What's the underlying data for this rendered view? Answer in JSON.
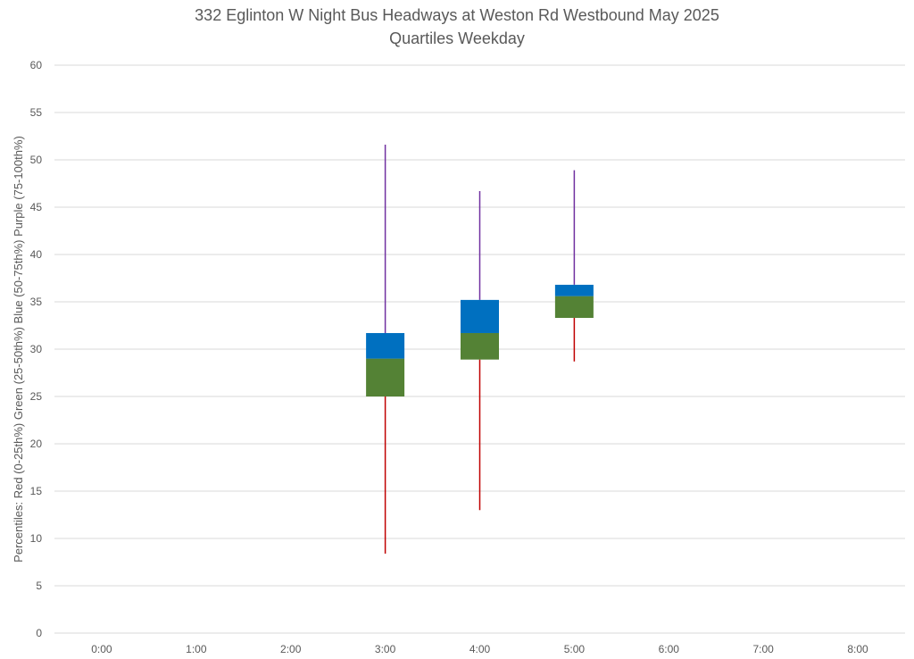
{
  "chart_data": {
    "type": "boxplot",
    "title": "332 Eglinton W Night Bus Headways at Weston Rd Westbound May 2025",
    "subtitle": "Quartiles Weekday",
    "ylabel": "Percentiles:  Red (0-25th%)  Green (25-50th%)  Blue (50-75th%)  Purple (75-100th%)",
    "xlabel": "",
    "categories": [
      "0:00",
      "1:00",
      "2:00",
      "3:00",
      "4:00",
      "5:00",
      "6:00",
      "7:00",
      "8:00"
    ],
    "yticks": [
      "0",
      "5",
      "10",
      "15",
      "20",
      "25",
      "30",
      "35",
      "40",
      "45",
      "50",
      "55",
      "60"
    ],
    "ylim": [
      0,
      60
    ],
    "grid": true,
    "colors": {
      "min_q1": "#c00000",
      "q1_median": "#548235",
      "median_q3": "#0070c0",
      "q3_max": "#7030a0"
    },
    "series": [
      {
        "category": "3:00",
        "min": 8.4,
        "q1": 25.0,
        "median": 29.0,
        "q3": 31.7,
        "max": 51.6
      },
      {
        "category": "4:00",
        "min": 13.0,
        "q1": 28.9,
        "median": 31.7,
        "q3": 35.2,
        "max": 46.7
      },
      {
        "category": "5:00",
        "min": 28.7,
        "q1": 33.3,
        "median": 35.6,
        "q3": 36.8,
        "max": 48.9
      }
    ]
  }
}
